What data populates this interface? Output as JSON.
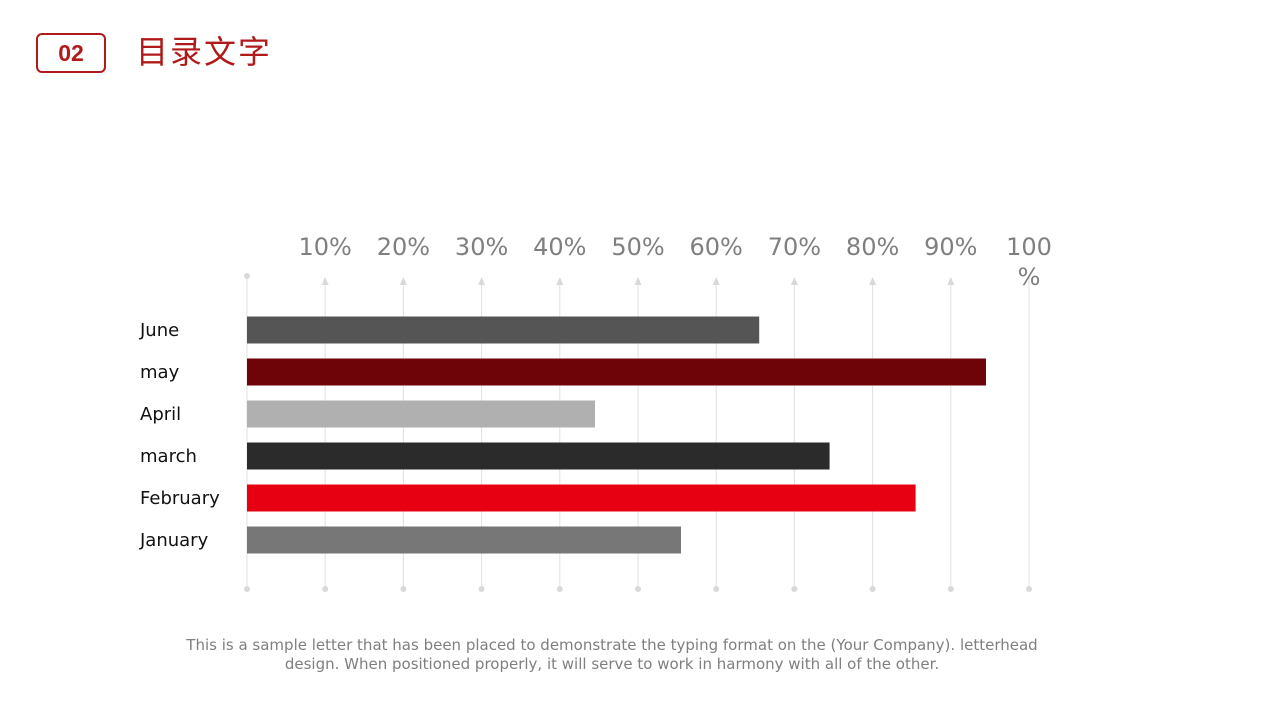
{
  "header": {
    "number": "02",
    "title": "目录文字"
  },
  "chart_data": {
    "type": "bar",
    "orientation": "horizontal",
    "categories": [
      "June",
      "may",
      "April",
      "march",
      "February",
      "January"
    ],
    "values": [
      65.5,
      94.5,
      44.5,
      74.5,
      85.5,
      55.5
    ],
    "colors": [
      "#555555",
      "#6e0408",
      "#b0b0b0",
      "#2b2b2b",
      "#e60012",
      "#777777"
    ],
    "x_ticks": [
      "10%",
      "20%",
      "30%",
      "40%",
      "50%",
      "60%",
      "70%",
      "80%",
      "90%",
      "100%"
    ],
    "xlim": [
      0,
      100
    ],
    "title": "",
    "xlabel": "",
    "ylabel": "",
    "grid": true,
    "legend": "none"
  },
  "caption": "This is a sample letter that has been placed to demonstrate the typing format on the (Your Company). letterhead design. When positioned properly, it will serve to work in harmony with all of the other."
}
